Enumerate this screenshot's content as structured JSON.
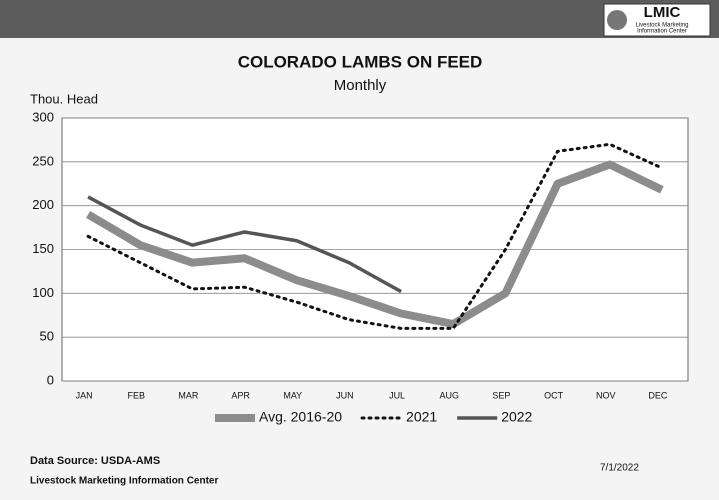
{
  "chart_data": {
    "type": "line",
    "title": "COLORADO LAMBS ON FEED",
    "subtitle": "Monthly",
    "y_label": "Thou. Head",
    "categories": [
      "JAN",
      "FEB",
      "MAR",
      "APR",
      "MAY",
      "JUN",
      "JUL",
      "AUG",
      "SEP",
      "OCT",
      "NOV",
      "DEC"
    ],
    "series": [
      {
        "name": "Avg. 2016-20",
        "color": "#8c8c8c",
        "width": 8,
        "style": "solid",
        "values": [
          190,
          155,
          135,
          140,
          115,
          97,
          77,
          65,
          100,
          225,
          247,
          218
        ]
      },
      {
        "name": "2021",
        "color": "#111111",
        "width": 3,
        "style": "dotted",
        "values": [
          165,
          135,
          105,
          107,
          90,
          70,
          60,
          60,
          150,
          262,
          270,
          243
        ]
      },
      {
        "name": "2022",
        "color": "#555555",
        "width": 3.5,
        "style": "solid",
        "values": [
          210,
          178,
          155,
          170,
          160,
          135,
          102,
          null,
          null,
          null,
          null,
          null
        ]
      }
    ],
    "ylim": [
      0,
      300
    ],
    "yticks": [
      0,
      50,
      100,
      150,
      200,
      250,
      300
    ],
    "grid": true,
    "legend": "bottom",
    "source": "Data Source:  USDA-AMS",
    "footer": "Livestock Marketing Information Center",
    "date": "7/1/2022",
    "logo": {
      "name": "LMIC",
      "line1": "Livestock Marketing",
      "line2": "Information Center"
    }
  }
}
